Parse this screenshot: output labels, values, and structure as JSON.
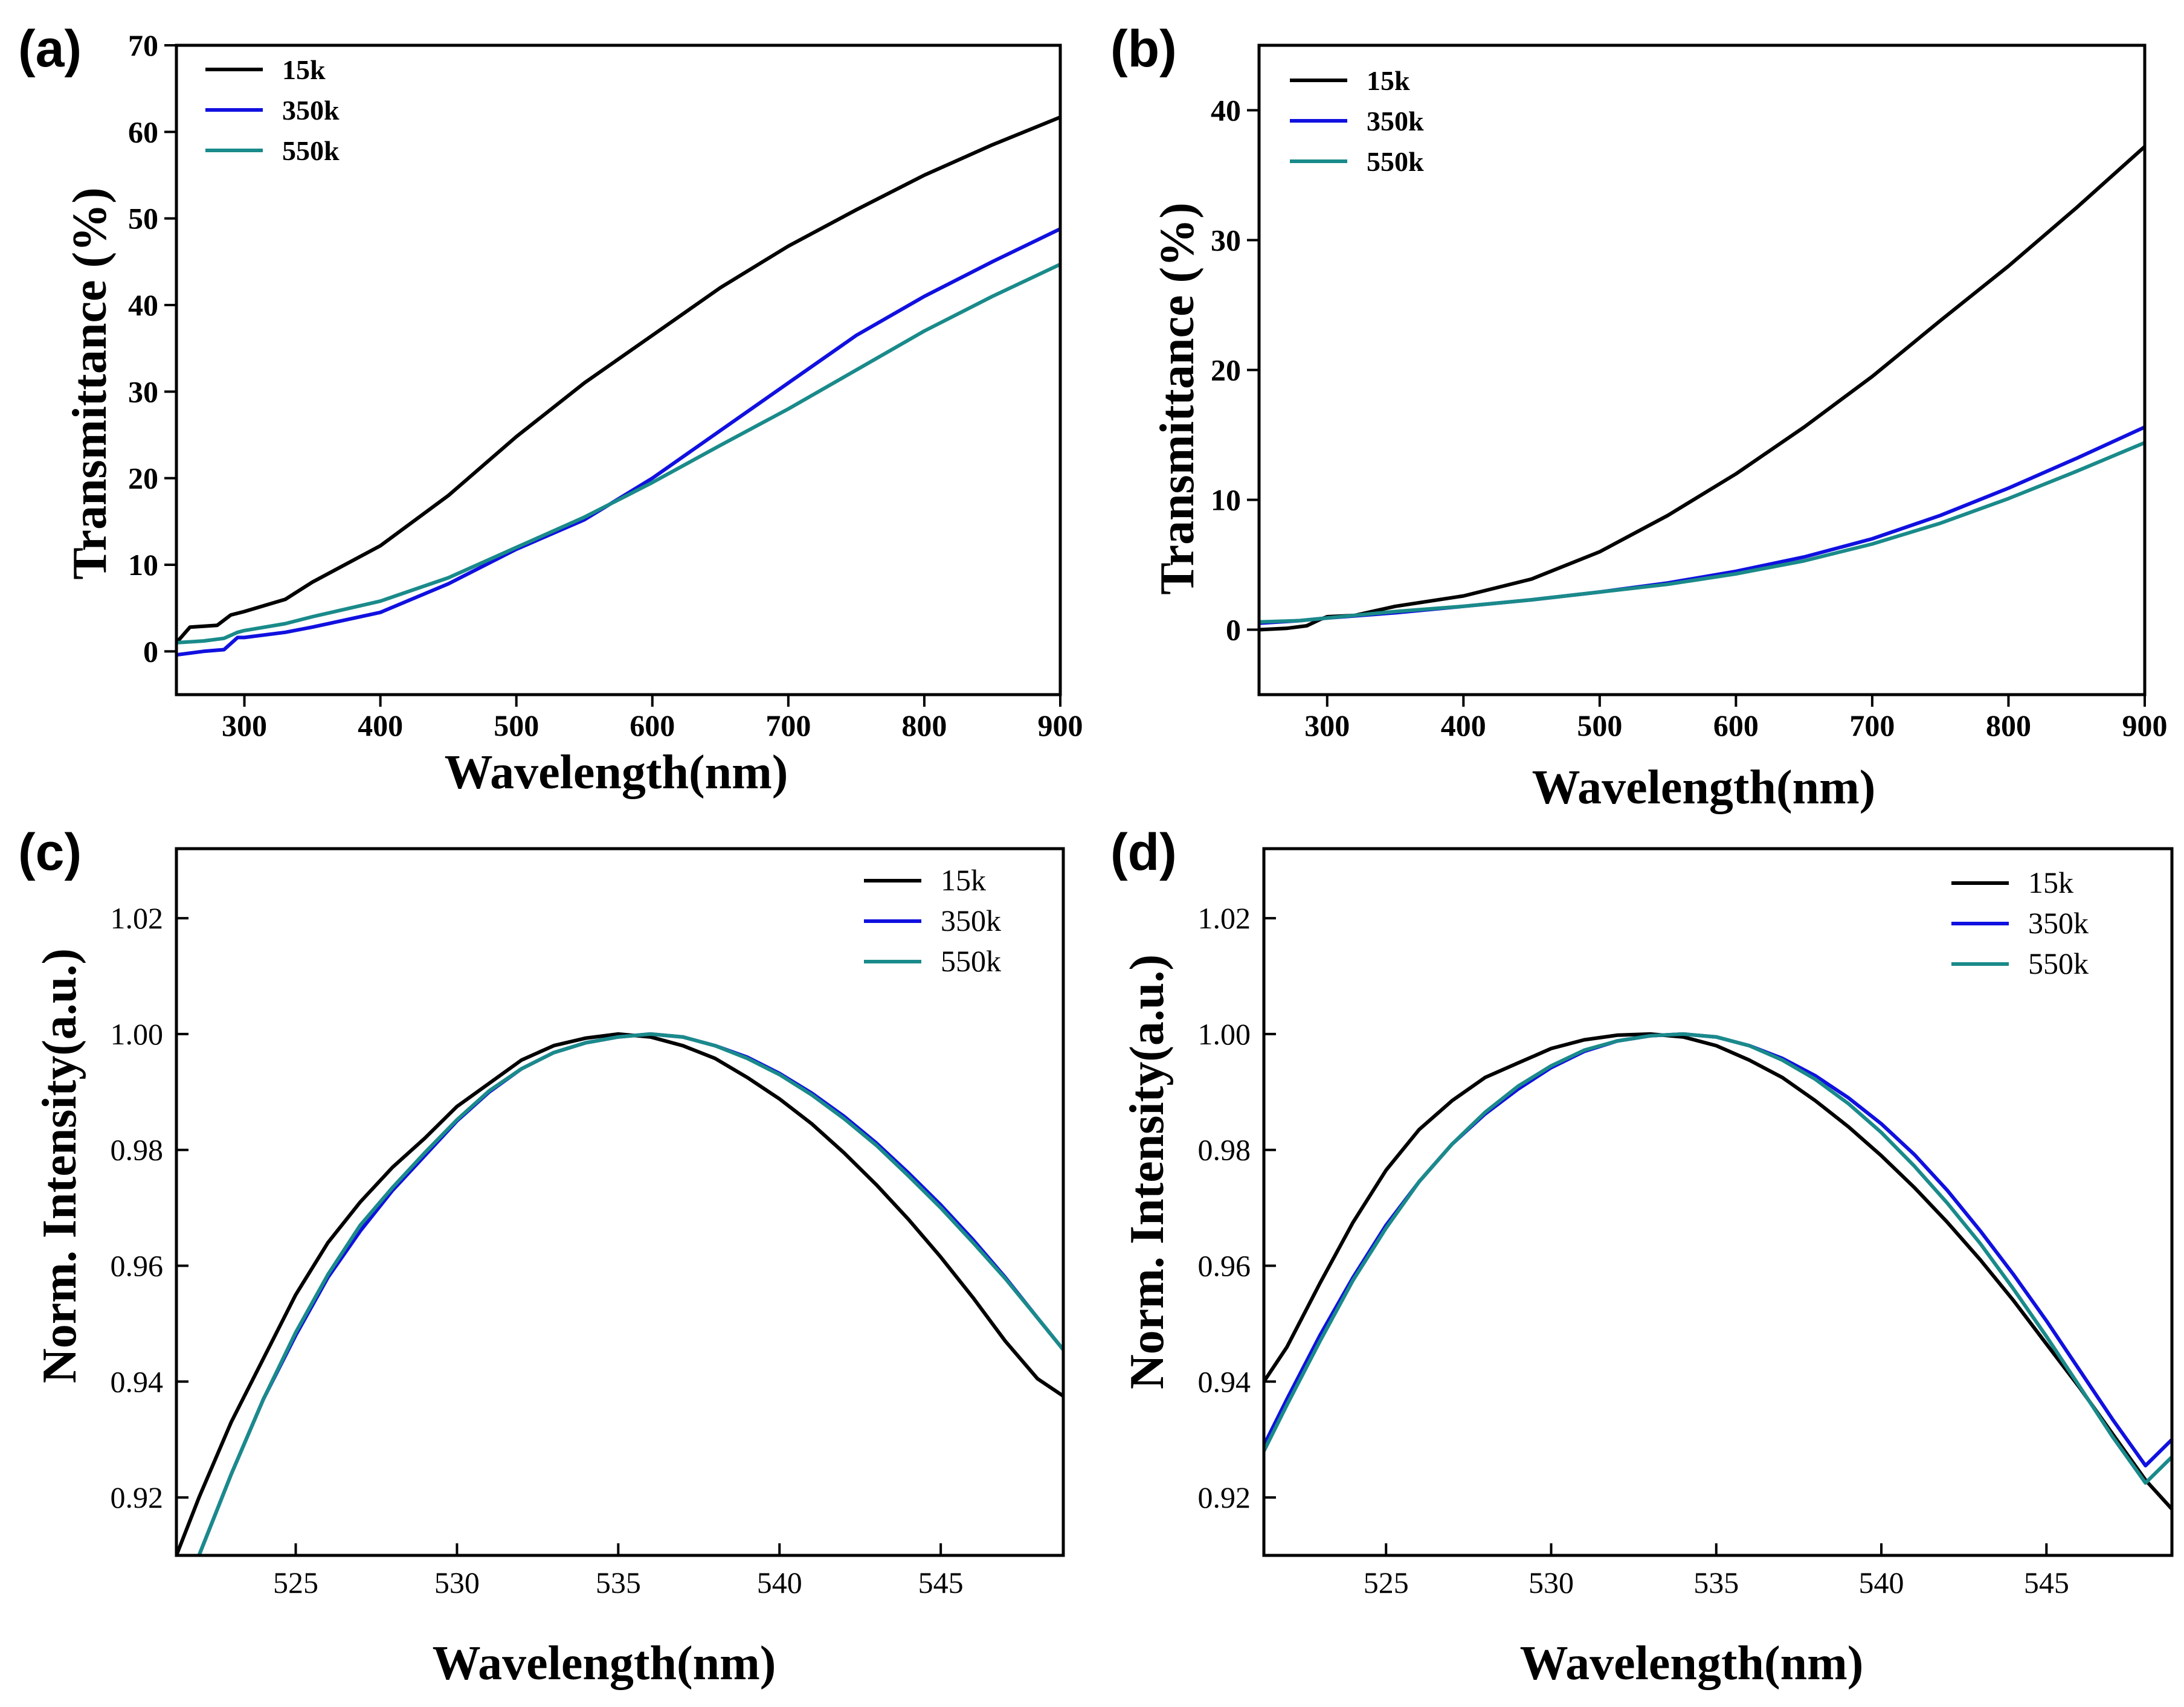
{
  "chart_data": [
    {
      "panel": "(a)",
      "type": "line",
      "xlabel": "Wavelength(nm)",
      "ylabel": "Transmittance (%)",
      "xlim": [
        250,
        900
      ],
      "ylim": [
        -5,
        70
      ],
      "xticks": [
        300,
        400,
        500,
        600,
        700,
        800,
        900
      ],
      "yticks": [
        0,
        10,
        20,
        30,
        40,
        50,
        60,
        70
      ],
      "legend_position": "top-left",
      "series": [
        {
          "name": "15k",
          "color": "#000000",
          "x": [
            250,
            260,
            280,
            290,
            300,
            330,
            350,
            400,
            450,
            500,
            550,
            600,
            650,
            700,
            750,
            800,
            850,
            900
          ],
          "y": [
            1.0,
            2.8,
            3.0,
            4.2,
            4.6,
            6.0,
            8.0,
            12.2,
            18.0,
            24.8,
            31.0,
            36.5,
            42.0,
            46.8,
            51.0,
            55.0,
            58.5,
            61.7
          ]
        },
        {
          "name": "350k",
          "color": "#1010e0",
          "x": [
            250,
            270,
            285,
            295,
            300,
            330,
            350,
            400,
            450,
            500,
            550,
            600,
            650,
            700,
            750,
            800,
            850,
            900
          ],
          "y": [
            -0.4,
            0.0,
            0.2,
            1.6,
            1.6,
            2.2,
            2.8,
            4.5,
            7.8,
            11.8,
            15.2,
            20.0,
            25.5,
            31.0,
            36.5,
            41.0,
            45.0,
            48.8
          ]
        },
        {
          "name": "550k",
          "color": "#1a8a8a",
          "x": [
            250,
            270,
            285,
            295,
            300,
            330,
            350,
            400,
            450,
            500,
            550,
            600,
            650,
            700,
            750,
            800,
            850,
            900
          ],
          "y": [
            1.0,
            1.2,
            1.5,
            2.2,
            2.4,
            3.2,
            4.0,
            5.8,
            8.5,
            12.0,
            15.5,
            19.5,
            23.8,
            28.0,
            32.5,
            37.0,
            41.0,
            44.7
          ]
        }
      ]
    },
    {
      "panel": "(b)",
      "type": "line",
      "xlabel": "Wavelength(nm)",
      "ylabel": "Transmittance (%)",
      "xlim": [
        250,
        900
      ],
      "ylim": [
        -5,
        45
      ],
      "xticks": [
        300,
        400,
        500,
        600,
        700,
        800,
        900
      ],
      "yticks": [
        0,
        10,
        20,
        30,
        40
      ],
      "legend_position": "top-left",
      "series": [
        {
          "name": "15k",
          "color": "#000000",
          "x": [
            250,
            270,
            285,
            295,
            300,
            320,
            350,
            400,
            450,
            500,
            550,
            600,
            650,
            700,
            750,
            800,
            850,
            900
          ],
          "y": [
            0.0,
            0.1,
            0.3,
            0.8,
            1.0,
            1.1,
            1.8,
            2.6,
            3.9,
            6.0,
            8.8,
            12.0,
            15.6,
            19.5,
            23.8,
            28.0,
            32.5,
            37.2
          ]
        },
        {
          "name": "350k",
          "color": "#1010e0",
          "x": [
            250,
            280,
            300,
            350,
            400,
            450,
            500,
            550,
            600,
            650,
            700,
            750,
            800,
            850,
            900
          ],
          "y": [
            0.5,
            0.7,
            0.9,
            1.3,
            1.8,
            2.3,
            2.9,
            3.6,
            4.5,
            5.6,
            7.0,
            8.8,
            10.9,
            13.2,
            15.6
          ]
        },
        {
          "name": "550k",
          "color": "#1a8a8a",
          "x": [
            250,
            280,
            300,
            350,
            400,
            450,
            500,
            550,
            600,
            650,
            700,
            750,
            800,
            850,
            900
          ],
          "y": [
            0.6,
            0.7,
            0.9,
            1.4,
            1.8,
            2.3,
            2.9,
            3.5,
            4.3,
            5.3,
            6.6,
            8.2,
            10.1,
            12.2,
            14.4
          ]
        }
      ]
    },
    {
      "panel": "(c)",
      "type": "line",
      "xlabel": "Wavelength(nm)",
      "ylabel": "Norm. Intensity(a.u.)",
      "xlim": [
        521.3,
        548.8
      ],
      "ylim": [
        0.91,
        1.032
      ],
      "xticks": [
        525,
        530,
        535,
        540,
        545
      ],
      "yticks": [
        0.92,
        0.94,
        0.96,
        0.98,
        1.0,
        1.02
      ],
      "ytick_labels": [
        "0.92",
        "0.94",
        "0.96",
        "0.98",
        "1.00",
        "1.02"
      ],
      "legend_position": "top-right",
      "series": [
        {
          "name": "15k",
          "color": "#000000",
          "x": [
            521.3,
            522.0,
            523.0,
            524.0,
            525.0,
            526.0,
            527.0,
            528.0,
            529.0,
            530.0,
            531.0,
            532.0,
            533.0,
            534.0,
            535.0,
            536.0,
            537.0,
            538.0,
            539.0,
            540.0,
            541.0,
            542.0,
            543.0,
            544.0,
            545.0,
            546.0,
            547.0,
            548.0,
            548.8
          ],
          "y": [
            0.91,
            0.92,
            0.933,
            0.944,
            0.955,
            0.964,
            0.971,
            0.977,
            0.982,
            0.9875,
            0.9915,
            0.9955,
            0.998,
            0.9993,
            1.0,
            0.9995,
            0.998,
            0.9958,
            0.9925,
            0.9888,
            0.9845,
            0.9795,
            0.974,
            0.968,
            0.9615,
            0.9545,
            0.947,
            0.9405,
            0.9375
          ]
        },
        {
          "name": "350k",
          "color": "#1010e0",
          "x": [
            522.0,
            523.0,
            524.0,
            525.0,
            526.0,
            527.0,
            528.0,
            529.0,
            530.0,
            531.0,
            532.0,
            533.0,
            534.0,
            535.0,
            536.0,
            537.0,
            538.0,
            539.0,
            540.0,
            541.0,
            542.0,
            543.0,
            544.0,
            545.0,
            546.0,
            547.0,
            548.0,
            548.8
          ],
          "y": [
            0.91,
            0.924,
            0.937,
            0.948,
            0.958,
            0.966,
            0.973,
            0.979,
            0.985,
            0.99,
            0.994,
            0.9968,
            0.9985,
            0.9995,
            1.0,
            0.9995,
            0.998,
            0.996,
            0.9932,
            0.9898,
            0.9858,
            0.9812,
            0.976,
            0.9705,
            0.9645,
            0.958,
            0.951,
            0.9455
          ]
        },
        {
          "name": "550k",
          "color": "#1a8a8a",
          "x": [
            522.0,
            523.0,
            524.0,
            525.0,
            526.0,
            527.0,
            528.0,
            529.0,
            530.0,
            531.0,
            532.0,
            533.0,
            534.0,
            535.0,
            536.0,
            537.0,
            538.0,
            539.0,
            540.0,
            541.0,
            542.0,
            543.0,
            544.0,
            545.0,
            546.0,
            547.0,
            548.0,
            548.8
          ],
          "y": [
            0.91,
            0.924,
            0.937,
            0.9485,
            0.9585,
            0.967,
            0.9735,
            0.9795,
            0.9852,
            0.9902,
            0.994,
            0.9968,
            0.9985,
            0.9995,
            1.0,
            0.9995,
            0.998,
            0.9958,
            0.993,
            0.9895,
            0.9854,
            0.9808,
            0.9755,
            0.97,
            0.964,
            0.9578,
            0.951,
            0.9455
          ]
        }
      ]
    },
    {
      "panel": "(d)",
      "type": "line",
      "xlabel": "Wavelength(nm)",
      "ylabel": "Norm. Intensity(a.u.)",
      "xlim": [
        521.3,
        548.8
      ],
      "ylim": [
        0.91,
        1.032
      ],
      "xticks": [
        525,
        530,
        535,
        540,
        545
      ],
      "yticks": [
        0.92,
        0.94,
        0.96,
        0.98,
        1.0,
        1.02
      ],
      "ytick_labels": [
        "0.92",
        "0.94",
        "0.96",
        "0.98",
        "1.00",
        "1.02"
      ],
      "legend_position": "top-right",
      "series": [
        {
          "name": "15k",
          "color": "#000000",
          "x": [
            521.3,
            522.0,
            523.0,
            524.0,
            525.0,
            526.0,
            527.0,
            528.0,
            529.0,
            530.0,
            531.0,
            532.0,
            533.0,
            534.0,
            535.0,
            536.0,
            537.0,
            538.0,
            539.0,
            540.0,
            541.0,
            542.0,
            543.0,
            544.0,
            545.0,
            546.0,
            547.0,
            548.0,
            548.8
          ],
          "y": [
            0.94,
            0.946,
            0.957,
            0.9675,
            0.9765,
            0.9835,
            0.9885,
            0.9925,
            0.995,
            0.9975,
            0.999,
            0.9998,
            1.0,
            0.9995,
            0.998,
            0.9955,
            0.9925,
            0.9885,
            0.984,
            0.979,
            0.9735,
            0.9675,
            0.961,
            0.954,
            0.9465,
            0.939,
            0.931,
            0.923,
            0.918
          ]
        },
        {
          "name": "350k",
          "color": "#1010e0",
          "x": [
            521.3,
            522.0,
            523.0,
            524.0,
            525.0,
            526.0,
            527.0,
            528.0,
            529.0,
            530.0,
            531.0,
            532.0,
            533.0,
            534.0,
            535.0,
            536.0,
            537.0,
            538.0,
            539.0,
            540.0,
            541.0,
            542.0,
            543.0,
            544.0,
            545.0,
            546.0,
            547.0,
            548.0,
            548.8
          ],
          "y": [
            0.929,
            0.937,
            0.948,
            0.958,
            0.967,
            0.9745,
            0.981,
            0.9862,
            0.9905,
            0.9942,
            0.997,
            0.9988,
            0.9997,
            1.0,
            0.9995,
            0.998,
            0.9958,
            0.9928,
            0.989,
            0.9845,
            0.9792,
            0.973,
            0.966,
            0.9585,
            0.9505,
            0.942,
            0.9335,
            0.9255,
            0.93
          ]
        },
        {
          "name": "550k",
          "color": "#1a8a8a",
          "x": [
            521.3,
            522.0,
            523.0,
            524.0,
            525.0,
            526.0,
            527.0,
            528.0,
            529.0,
            530.0,
            531.0,
            532.0,
            533.0,
            534.0,
            535.0,
            536.0,
            537.0,
            538.0,
            539.0,
            540.0,
            541.0,
            542.0,
            543.0,
            544.0,
            545.0,
            546.0,
            547.0,
            548.0,
            548.8
          ],
          "y": [
            0.928,
            0.936,
            0.947,
            0.9575,
            0.9665,
            0.9745,
            0.981,
            0.9865,
            0.991,
            0.9945,
            0.9972,
            0.9988,
            0.9997,
            1.0,
            0.9995,
            0.998,
            0.9955,
            0.9922,
            0.988,
            0.983,
            0.9772,
            0.9708,
            0.9638,
            0.956,
            0.9478,
            0.9392,
            0.9305,
            0.9225,
            0.927
          ]
        }
      ]
    }
  ]
}
